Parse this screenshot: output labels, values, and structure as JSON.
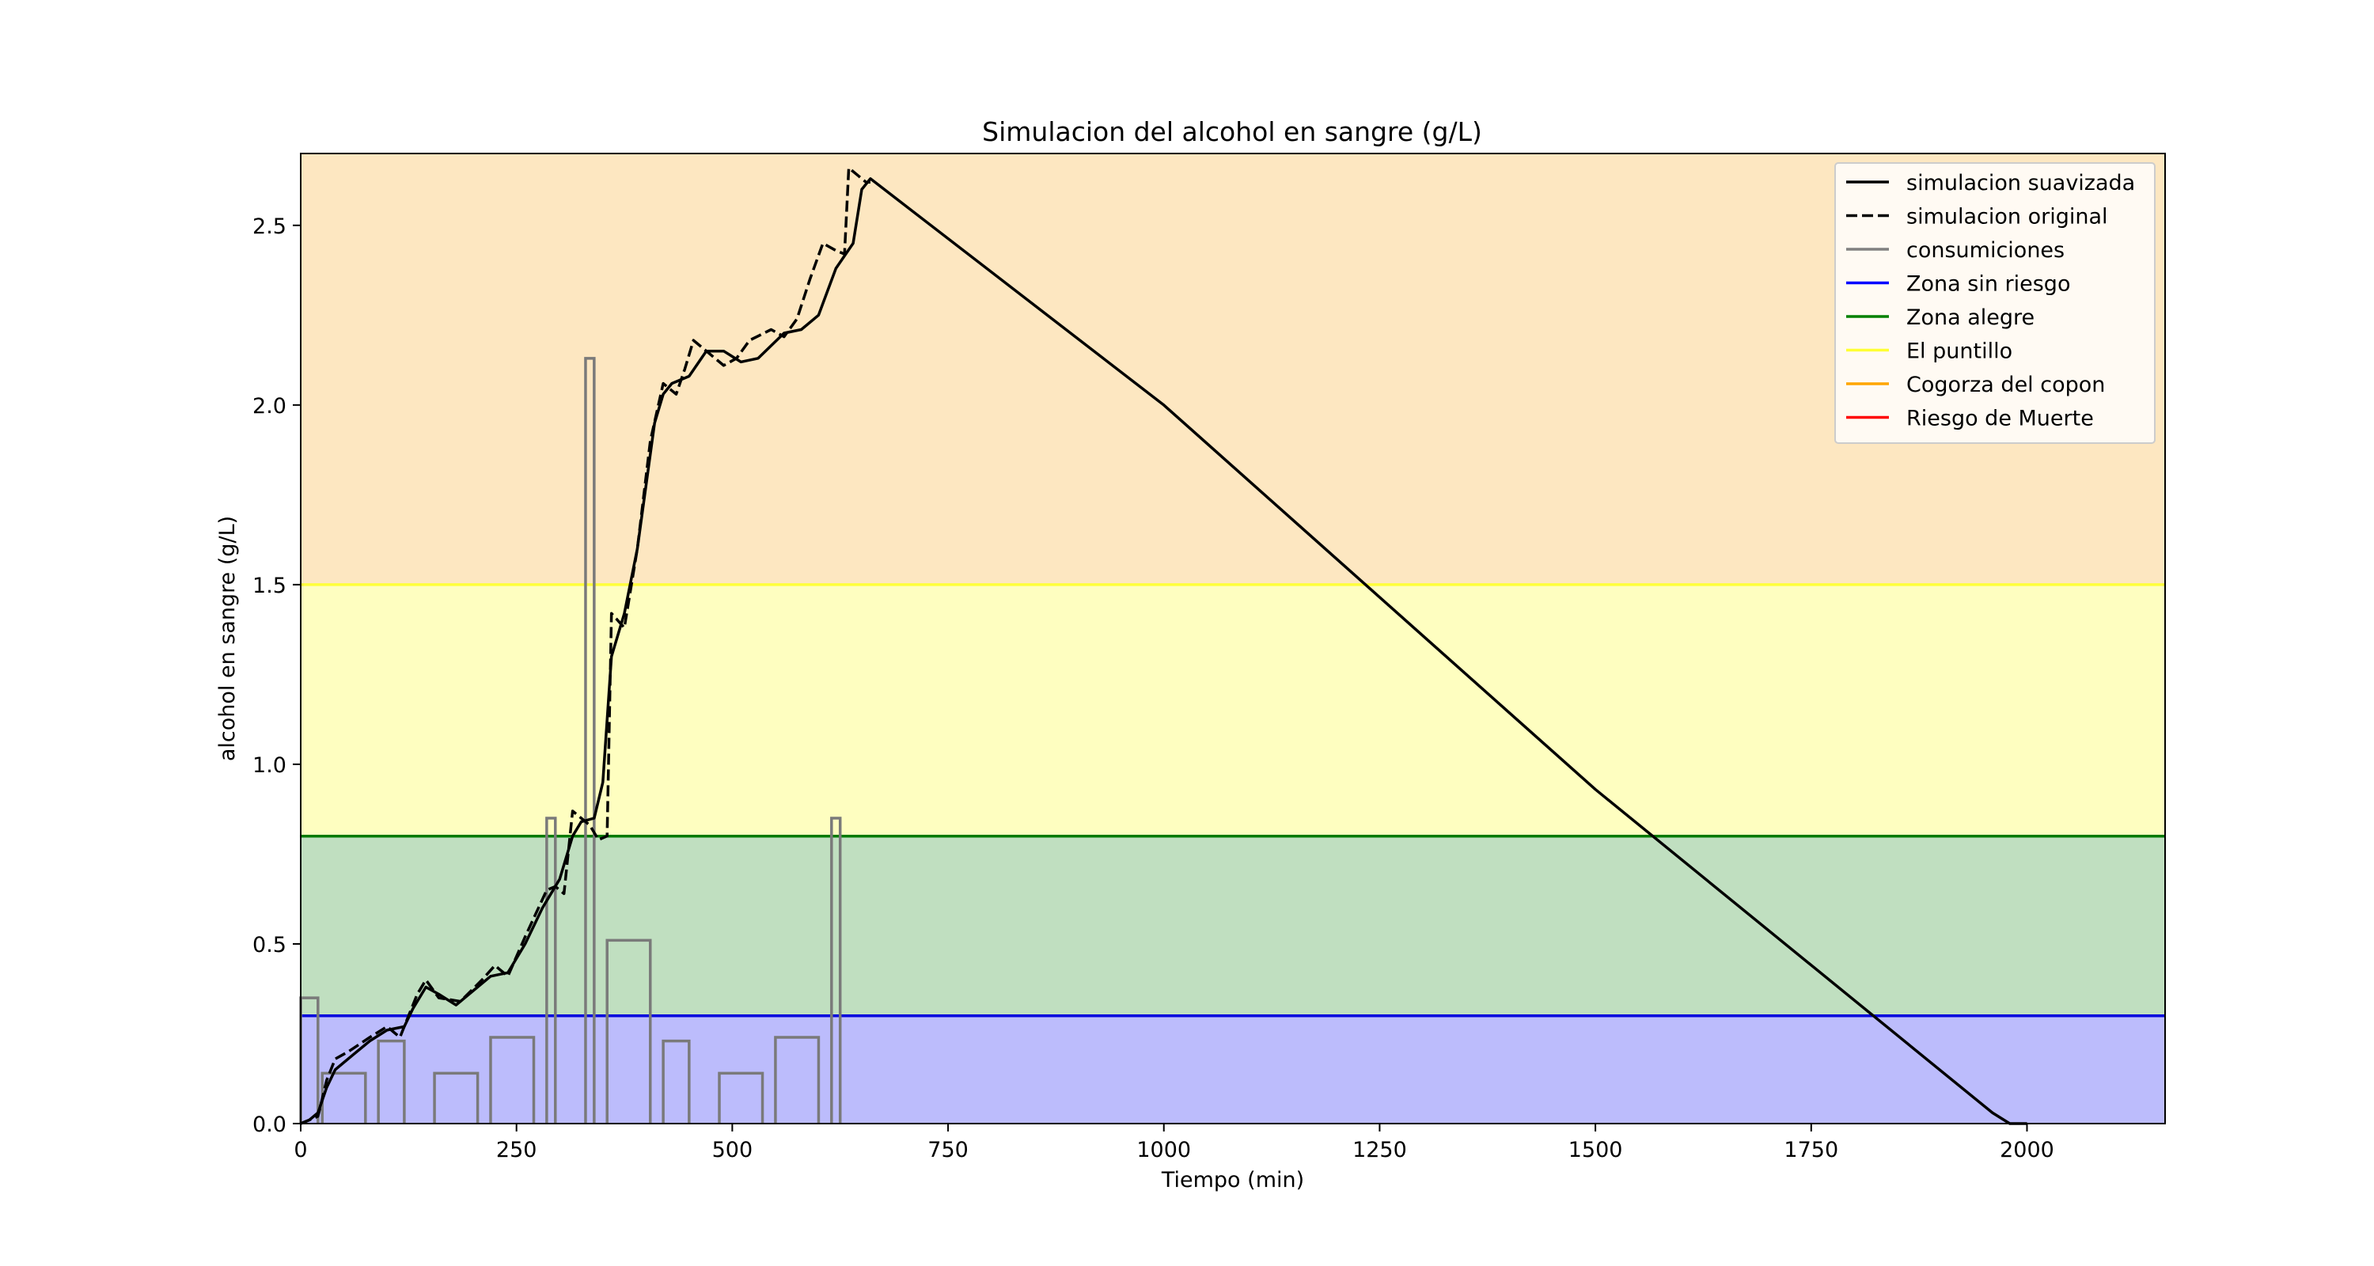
{
  "chart_data": {
    "type": "line",
    "title": "Simulacion del alcohol en sangre (g/L)",
    "xlabel": "Tiempo (min)",
    "ylabel": "alcohol en sangre (g/L)",
    "xlim": [
      0,
      2160
    ],
    "ylim": [
      0,
      2.7
    ],
    "xticks": [
      0,
      250,
      500,
      750,
      1000,
      1250,
      1500,
      1750,
      2000
    ],
    "yticks": [
      0.0,
      0.5,
      1.0,
      1.5,
      2.0,
      2.5
    ],
    "x_tick_labels": [
      "0",
      "250",
      "500",
      "750",
      "1000",
      "1250",
      "1500",
      "1750",
      "2000"
    ],
    "y_tick_labels": [
      "0.0",
      "0.5",
      "1.0",
      "1.5",
      "2.0",
      "2.5"
    ],
    "grid": false,
    "legend_position": "top-right",
    "zones": [
      {
        "name": "Zona sin riesgo",
        "from": 0,
        "to": 0.3,
        "fill": "#bcbcfc",
        "line": "#0000dd"
      },
      {
        "name": "Zona alegre",
        "from": 0.3,
        "to": 0.8,
        "fill": "#c0dfc0",
        "line": "#007a00"
      },
      {
        "name": "El puntillo",
        "from": 0.8,
        "to": 1.5,
        "fill": "#fefec0",
        "line": "#fefe3a"
      },
      {
        "name": "Cogorza del copon",
        "from": 1.5,
        "to": 2.7,
        "fill": "#fde7c1",
        "line": "#ffa500"
      }
    ],
    "series": [
      {
        "name": "simulacion suavizada",
        "style": "solid",
        "color": "#000000",
        "x": [
          0,
          10,
          20,
          30,
          40,
          60,
          80,
          100,
          120,
          130,
          145,
          160,
          180,
          200,
          220,
          240,
          260,
          280,
          300,
          315,
          325,
          340,
          350,
          360,
          375,
          390,
          410,
          420,
          430,
          450,
          470,
          490,
          510,
          530,
          560,
          580,
          600,
          620,
          640,
          650,
          660,
          1000,
          1500,
          1960,
          1980,
          2000
        ],
        "y": [
          0,
          0.01,
          0.03,
          0.1,
          0.15,
          0.19,
          0.23,
          0.26,
          0.27,
          0.32,
          0.38,
          0.36,
          0.33,
          0.37,
          0.41,
          0.42,
          0.5,
          0.6,
          0.68,
          0.8,
          0.84,
          0.85,
          0.95,
          1.3,
          1.42,
          1.6,
          1.95,
          2.03,
          2.06,
          2.08,
          2.15,
          2.15,
          2.12,
          2.13,
          2.2,
          2.21,
          2.25,
          2.38,
          2.45,
          2.6,
          2.63,
          2.0,
          0.93,
          0.03,
          0,
          0
        ]
      },
      {
        "name": "simulacion original",
        "style": "dashed",
        "color": "#000000",
        "x": [
          0,
          20,
          30,
          40,
          55,
          80,
          100,
          115,
          125,
          135,
          145,
          160,
          185,
          210,
          225,
          240,
          260,
          285,
          295,
          305,
          315,
          325,
          335,
          345,
          355,
          360,
          375,
          390,
          405,
          420,
          435,
          445,
          455,
          470,
          490,
          505,
          520,
          545,
          560,
          575,
          590,
          605,
          620,
          630,
          635,
          645,
          655,
          660
        ],
        "y": [
          0,
          0.02,
          0.12,
          0.18,
          0.2,
          0.24,
          0.27,
          0.24,
          0.3,
          0.36,
          0.4,
          0.35,
          0.34,
          0.4,
          0.44,
          0.41,
          0.52,
          0.65,
          0.66,
          0.64,
          0.87,
          0.85,
          0.83,
          0.79,
          0.8,
          1.42,
          1.38,
          1.6,
          1.9,
          2.06,
          2.03,
          2.1,
          2.18,
          2.15,
          2.11,
          2.13,
          2.18,
          2.21,
          2.19,
          2.24,
          2.35,
          2.45,
          2.43,
          2.42,
          2.66,
          2.64,
          2.62,
          2.62
        ]
      },
      {
        "name": "consumiciones",
        "style": "step",
        "color": "#7a7a7a",
        "bars": [
          {
            "x0": 0,
            "x1": 20,
            "value": 0.35
          },
          {
            "x0": 25,
            "x1": 75,
            "value": 0.14
          },
          {
            "x0": 90,
            "x1": 120,
            "value": 0.23
          },
          {
            "x0": 155,
            "x1": 205,
            "value": 0.14
          },
          {
            "x0": 220,
            "x1": 270,
            "value": 0.24
          },
          {
            "x0": 285,
            "x1": 295,
            "value": 0.85
          },
          {
            "x0": 330,
            "x1": 340,
            "value": 2.13
          },
          {
            "x0": 355,
            "x1": 405,
            "value": 0.51
          },
          {
            "x0": 420,
            "x1": 450,
            "value": 0.23
          },
          {
            "x0": 485,
            "x1": 535,
            "value": 0.14
          },
          {
            "x0": 550,
            "x1": 600,
            "value": 0.24
          },
          {
            "x0": 615,
            "x1": 625,
            "value": 0.85
          }
        ]
      }
    ],
    "legend": [
      {
        "label": "simulacion suavizada",
        "color": "#000000",
        "dash": false
      },
      {
        "label": "simulacion original",
        "color": "#000000",
        "dash": true
      },
      {
        "label": "consumiciones",
        "color": "#808080",
        "dash": false
      },
      {
        "label": "Zona sin riesgo",
        "color": "#0000ff",
        "dash": false
      },
      {
        "label": "Zona alegre",
        "color": "#008000",
        "dash": false
      },
      {
        "label": "El puntillo",
        "color": "#ffff33",
        "dash": false
      },
      {
        "label": "Cogorza del copon",
        "color": "#ffa500",
        "dash": false
      },
      {
        "label": "Riesgo de Muerte",
        "color": "#ff0000",
        "dash": false
      }
    ]
  }
}
